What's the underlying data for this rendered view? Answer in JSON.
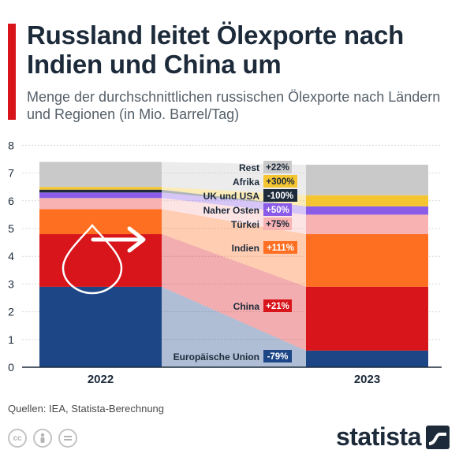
{
  "header": {
    "title": "Russland leitet Ölexporte nach Indien und China um",
    "subtitle": "Menge der durchschnittlichen russischen Ölexporte nach Ländern und Regionen (in Mio. Barrel/Tag)"
  },
  "footer": {
    "source": "Quellen: IEA, Statista-Berechnung",
    "brand": "statista",
    "license_icons": [
      "cc-icon",
      "person-icon",
      "equals-icon"
    ]
  },
  "icons": {
    "overlay": [
      "oil-drop-icon",
      "arrow-right-icon"
    ]
  },
  "chart_data": {
    "type": "bar",
    "stacked": true,
    "categories": [
      "2022",
      "2023"
    ],
    "ylim": [
      0,
      8
    ],
    "yticks": [
      0,
      1,
      2,
      3,
      4,
      5,
      6,
      7,
      8
    ],
    "grid": true,
    "series": [
      {
        "name": "Europäische Union",
        "change": "-79%",
        "values": [
          2.9,
          0.6
        ],
        "color": "#1d4687",
        "label_bg": "#1d4687",
        "label_fg": "#ffffff"
      },
      {
        "name": "China",
        "change": "+21%",
        "values": [
          1.9,
          2.3
        ],
        "color": "#d7151b",
        "label_bg": "#d7151b",
        "label_fg": "#ffffff"
      },
      {
        "name": "Indien",
        "change": "+111%",
        "values": [
          0.9,
          1.9
        ],
        "color": "#ff6f22",
        "label_bg": "#ff6f22",
        "label_fg": "#ffffff"
      },
      {
        "name": "Türkei",
        "change": "+75%",
        "values": [
          0.4,
          0.7
        ],
        "color": "#f9b2b2",
        "label_bg": "#f9b2b2",
        "label_fg": "#1c2a3a"
      },
      {
        "name": "Naher Osten",
        "change": "+50%",
        "values": [
          0.2,
          0.3
        ],
        "color": "#8a5ce8",
        "label_bg": "#8a5ce8",
        "label_fg": "#ffffff"
      },
      {
        "name": "UK und USA",
        "change": "-100%",
        "values": [
          0.1,
          0.0
        ],
        "color": "#1c2a3a",
        "label_bg": "#1c2a3a",
        "label_fg": "#ffffff"
      },
      {
        "name": "Afrika",
        "change": "+300%",
        "values": [
          0.1,
          0.4
        ],
        "color": "#f4c531",
        "label_bg": "#f4c531",
        "label_fg": "#1c2a3a"
      },
      {
        "name": "Rest",
        "change": "+22%",
        "values": [
          0.9,
          1.1
        ],
        "color": "#c9c9c9",
        "label_bg": "#c9c9c9",
        "label_fg": "#1c2a3a"
      }
    ]
  }
}
